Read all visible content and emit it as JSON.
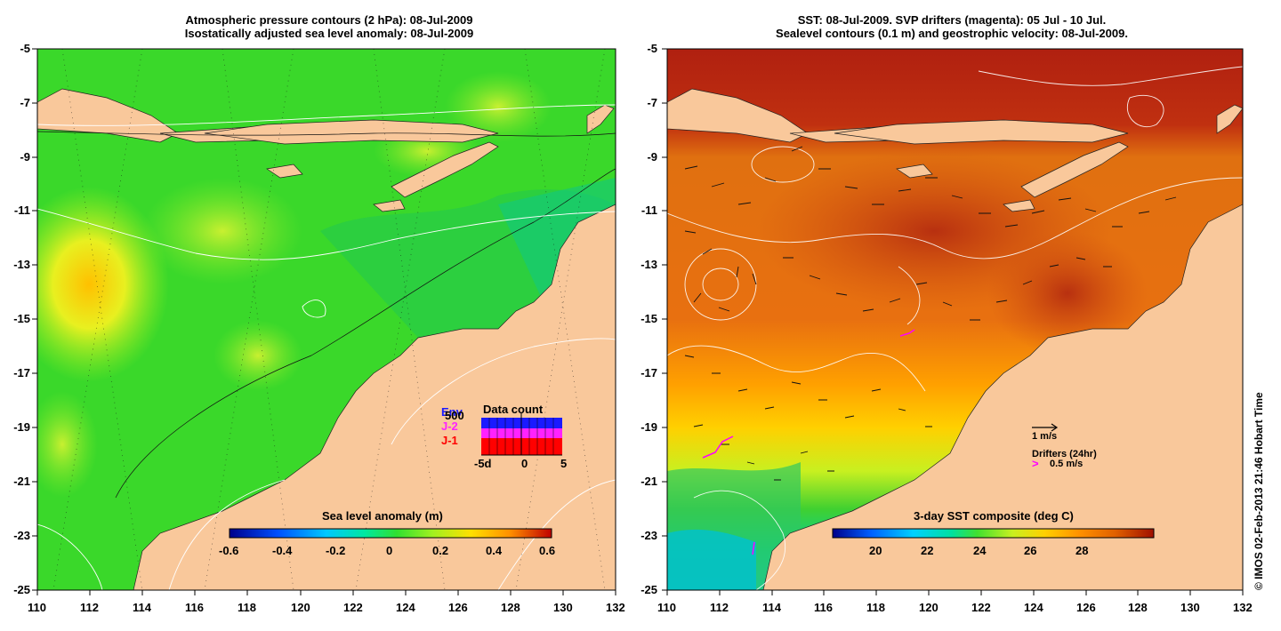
{
  "left_panel": {
    "title_line1": "Atmospheric pressure contours (2 hPa): 08-Jul-2009",
    "title_line2": "Isostatically adjusted sea level anomaly: 08-Jul-2009",
    "colorbar": {
      "title": "Sea level anomaly (m)",
      "ticks": [
        "-0.6",
        "-0.4",
        "-0.2",
        "0",
        "0.2",
        "0.4",
        "0.6"
      ]
    },
    "inset": {
      "title": "Data count",
      "legend": [
        {
          "label": "Env",
          "color": "#1a1aff"
        },
        {
          "label": "J-2",
          "color": "#ff22ff"
        },
        {
          "label": "J-1",
          "color": "#ff0000"
        }
      ],
      "max_label": "500",
      "x_ticks": [
        "-5d",
        "0",
        "5"
      ]
    }
  },
  "right_panel": {
    "title_line1": "SST: 08-Jul-2009. SVP drifters (magenta): 05 Jul - 10 Jul.",
    "title_line2": "Sealevel contours (0.1 m) and geostrophic velocity: 08-Jul-2009.",
    "colorbar": {
      "title": "3-day SST composite (deg C)",
      "ticks": [
        "20",
        "22",
        "24",
        "26",
        "28"
      ]
    },
    "velocity_scale_label": "1 m/s",
    "drifter_label": "Drifters (24hr)",
    "drifter_scale_symbol": ">",
    "drifter_scale_label": "0.5 m/s"
  },
  "axes": {
    "x_ticks": [
      "110",
      "112",
      "114",
      "116",
      "118",
      "120",
      "122",
      "124",
      "126",
      "128",
      "130",
      "132"
    ],
    "y_ticks": [
      "-5",
      "-7",
      "-9",
      "-11",
      "-13",
      "-15",
      "-17",
      "-19",
      "-21",
      "-23",
      "-25"
    ]
  },
  "credit": "© IMOS 02-Feb-2013 21:46 Hobart Time",
  "colors": {
    "land": "#f9c89b",
    "sla_colormap": [
      "#00008b",
      "#0050ff",
      "#00c8ff",
      "#00e8a0",
      "#30e030",
      "#a0f020",
      "#ffe000",
      "#ff9000",
      "#c00000"
    ],
    "sst_colormap": [
      "#00008b",
      "#0060ff",
      "#00d0ff",
      "#00e0a0",
      "#40e030",
      "#c8f020",
      "#ffd000",
      "#ff9000",
      "#e06000",
      "#a01000"
    ],
    "drifter": "#ff00ff"
  }
}
